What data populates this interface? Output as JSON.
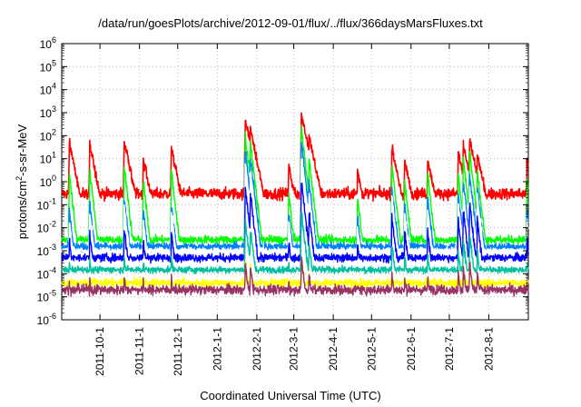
{
  "chart_data": {
    "type": "line",
    "title": "/data/run/goesPlots/archive/2012-09-01/flux/../flux/366daysMarsFluxes.txt",
    "xlabel": "Coordinated Universal Time (UTC)",
    "ylabel_prefix": "protons/cm",
    "ylabel_sup": "2",
    "ylabel_suffix": "-s-sr-MeV",
    "yscale": "log",
    "ylim": [
      1e-06,
      1000000.0
    ],
    "xlim": [
      "2011-09-01",
      "2012-09-01"
    ],
    "grid": true,
    "y_tick_labels": [
      {
        "base": "10",
        "exp": "-6",
        "value": 1e-06
      },
      {
        "base": "10",
        "exp": "-5",
        "value": 1e-05
      },
      {
        "base": "10",
        "exp": "-4",
        "value": 0.0001
      },
      {
        "base": "10",
        "exp": "-3",
        "value": 0.001
      },
      {
        "base": "10",
        "exp": "-2",
        "value": 0.01
      },
      {
        "base": "10",
        "exp": "-1",
        "value": 0.1
      },
      {
        "base": "10",
        "exp": "0",
        "value": 1
      },
      {
        "base": "10",
        "exp": "1",
        "value": 10
      },
      {
        "base": "10",
        "exp": "2",
        "value": 100
      },
      {
        "base": "10",
        "exp": "3",
        "value": 1000
      },
      {
        "base": "10",
        "exp": "4",
        "value": 10000
      },
      {
        "base": "10",
        "exp": "5",
        "value": 100000
      },
      {
        "base": "10",
        "exp": "6",
        "value": 1000000
      }
    ],
    "x_ticks": [
      "2011-10-1",
      "2011-11-1",
      "2011-12-1",
      "2012-1-1",
      "2012-2-1",
      "2012-3-1",
      "2012-4-1",
      "2012-5-1",
      "2012-6-1",
      "2012-7-1",
      "2012-8-1"
    ],
    "events": [
      {
        "date": "2011-09-07",
        "peaks": [
          50,
          2,
          0.05,
          0.02,
          0.003,
          0.0003,
          5e-05
        ]
      },
      {
        "date": "2011-09-23",
        "peaks": [
          40,
          3,
          0.1,
          0.04,
          0.005,
          0.0004,
          6e-05
        ]
      },
      {
        "date": "2011-10-20",
        "peaks": [
          60,
          5,
          0.2,
          0.08,
          0.01,
          0.0006,
          8e-05
        ]
      },
      {
        "date": "2011-11-04",
        "peaks": [
          10,
          1,
          0.05,
          0.02,
          0.003,
          0.0003,
          4e-05
        ]
      },
      {
        "date": "2011-11-26",
        "peaks": [
          30,
          3,
          0.1,
          0.05,
          0.006,
          0.0005,
          6e-05
        ]
      },
      {
        "date": "2012-01-23",
        "peaks": [
          600,
          100,
          20,
          5,
          0.5,
          0.02,
          0.0003
        ]
      },
      {
        "date": "2012-01-27",
        "peaks": [
          200,
          50,
          10,
          3,
          0.3,
          0.01,
          0.0002
        ]
      },
      {
        "date": "2012-02-26",
        "peaks": [
          5,
          0.3,
          0.05,
          0.02,
          0.003,
          0.0003,
          5e-05
        ]
      },
      {
        "date": "2012-03-07",
        "peaks": [
          900,
          200,
          50,
          10,
          1,
          0.05,
          0.0005
        ]
      },
      {
        "date": "2012-03-13",
        "peaks": [
          100,
          10,
          1,
          0.3,
          0.05,
          0.002,
          0.0001
        ]
      },
      {
        "date": "2012-04-20",
        "peaks": [
          3,
          0.2,
          0.03,
          0.01,
          0.002,
          0.0002,
          3e-05
        ]
      },
      {
        "date": "2012-05-17",
        "peaks": [
          30,
          5,
          0.5,
          0.2,
          0.03,
          0.002,
          0.0001
        ]
      },
      {
        "date": "2012-05-27",
        "peaks": [
          8,
          1,
          0.1,
          0.05,
          0.008,
          0.0006,
          6e-05
        ]
      },
      {
        "date": "2012-06-14",
        "peaks": [
          10,
          2,
          0.2,
          0.05,
          0.008,
          0.0006,
          6e-05
        ]
      },
      {
        "date": "2012-07-08",
        "peaks": [
          20,
          2,
          0.3,
          0.1,
          0.02,
          0.001,
          0.0001
        ]
      },
      {
        "date": "2012-07-12",
        "peaks": [
          40,
          10,
          1,
          0.3,
          0.05,
          0.003,
          0.0002
        ]
      },
      {
        "date": "2012-07-17",
        "peaks": [
          70,
          20,
          2,
          0.5,
          0.1,
          0.005,
          0.0003
        ]
      },
      {
        "date": "2012-07-23",
        "peaks": [
          15,
          3,
          0.5,
          0.2,
          0.02,
          0.001,
          0.0001
        ]
      },
      {
        "date": "2012-08-31",
        "peaks": [
          10,
          1,
          0.05,
          0.02,
          0.003,
          0.0003,
          4e-05
        ]
      }
    ],
    "series": [
      {
        "color": "#ff0000",
        "baseline": 0.3,
        "noise": 0.35
      },
      {
        "color": "#00ff00",
        "baseline": 0.003,
        "noise": 0.25
      },
      {
        "color": "#0080ff",
        "baseline": 0.0015,
        "noise": 0.25
      },
      {
        "color": "#ffffff",
        "baseline": 0.001,
        "noise": 0.2
      },
      {
        "color": "#0000ff",
        "baseline": 0.0005,
        "noise": 0.25
      },
      {
        "color": "#00c0a0",
        "baseline": 0.00015,
        "noise": 0.2
      },
      {
        "color": "#ffff00",
        "baseline": 4e-05,
        "noise": 0.25
      },
      {
        "color": "#993366",
        "baseline": 2e-05,
        "noise": 0.3
      }
    ]
  }
}
